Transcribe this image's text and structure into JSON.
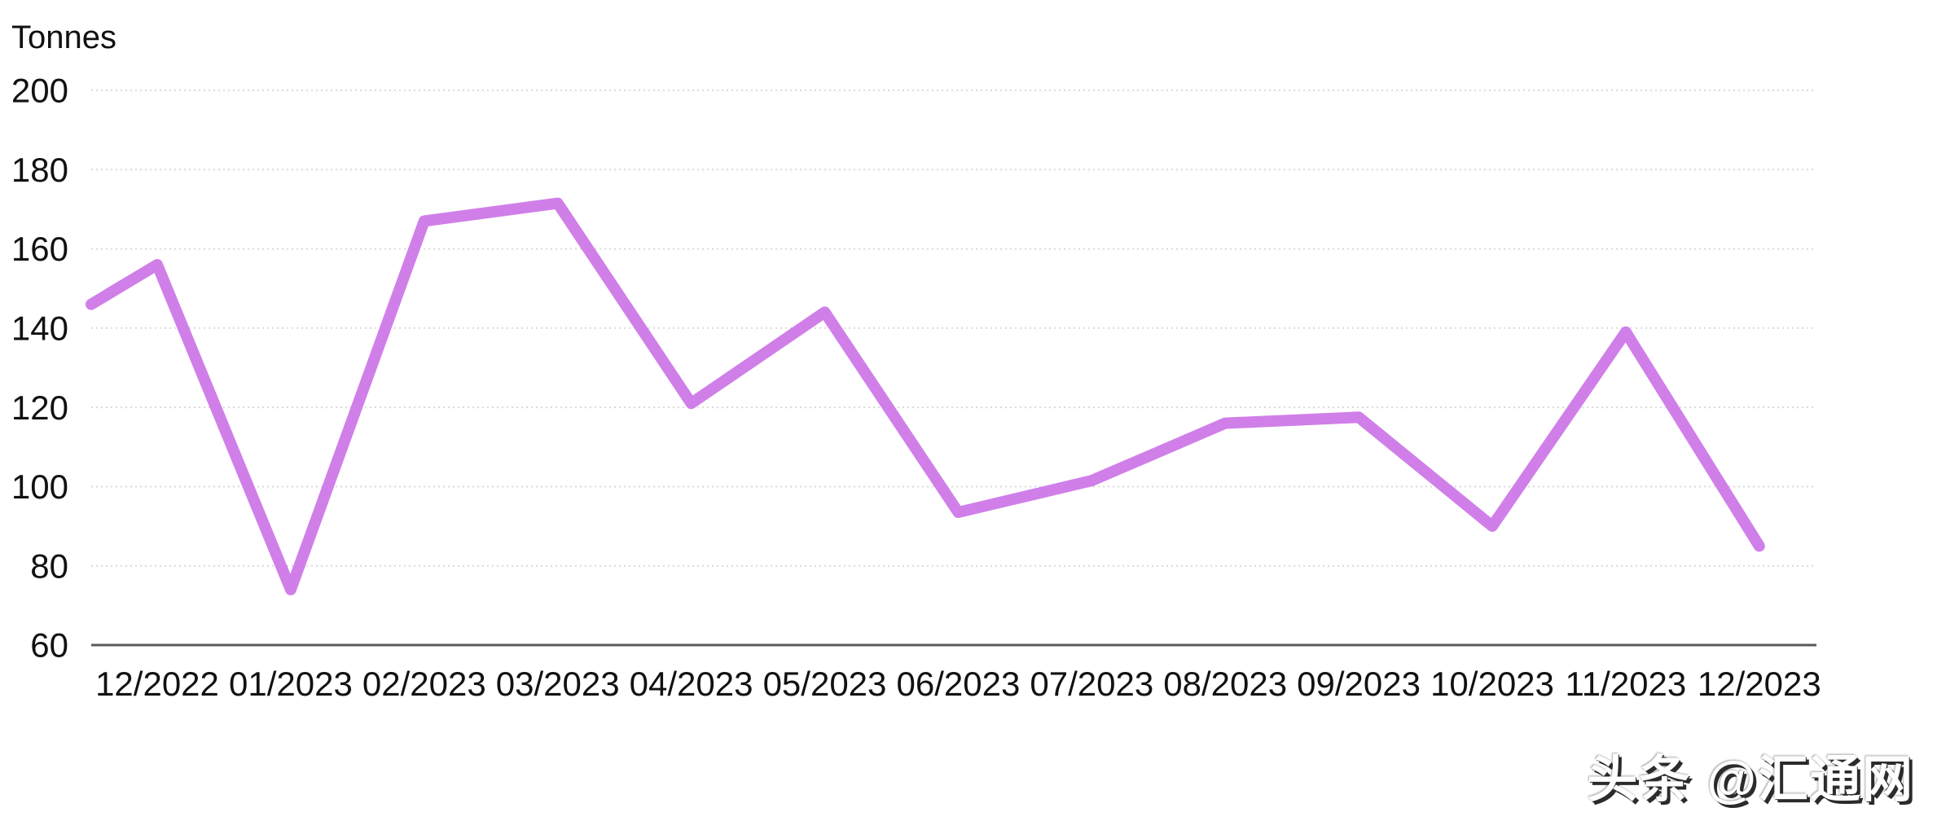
{
  "chart": {
    "unit_label": "Tonnes",
    "watermark": "头条 @汇通网"
  },
  "chart_data": {
    "type": "line",
    "title": "",
    "xlabel": "",
    "ylabel": "Tonnes",
    "categories": [
      "12/2022",
      "01/2023",
      "02/2023",
      "03/2023",
      "04/2023",
      "05/2023",
      "06/2023",
      "07/2023",
      "08/2023",
      "09/2023",
      "10/2023",
      "11/2023",
      "12/2023"
    ],
    "values": [
      156,
      74,
      167,
      171.5,
      121,
      144,
      93.5,
      101.5,
      116,
      117.5,
      90,
      139,
      85
    ],
    "leading_edge_value": 146,
    "ylim": [
      60,
      200
    ],
    "yticks": [
      60,
      80,
      100,
      120,
      140,
      160,
      180,
      200
    ],
    "ytick_step": 20,
    "grid": "horizontal-dotted",
    "legend": "none",
    "line_color": "#d07fe9",
    "gridline_color": "#d9d9d9",
    "axis_color": "#595959",
    "text_color": "#111111"
  }
}
